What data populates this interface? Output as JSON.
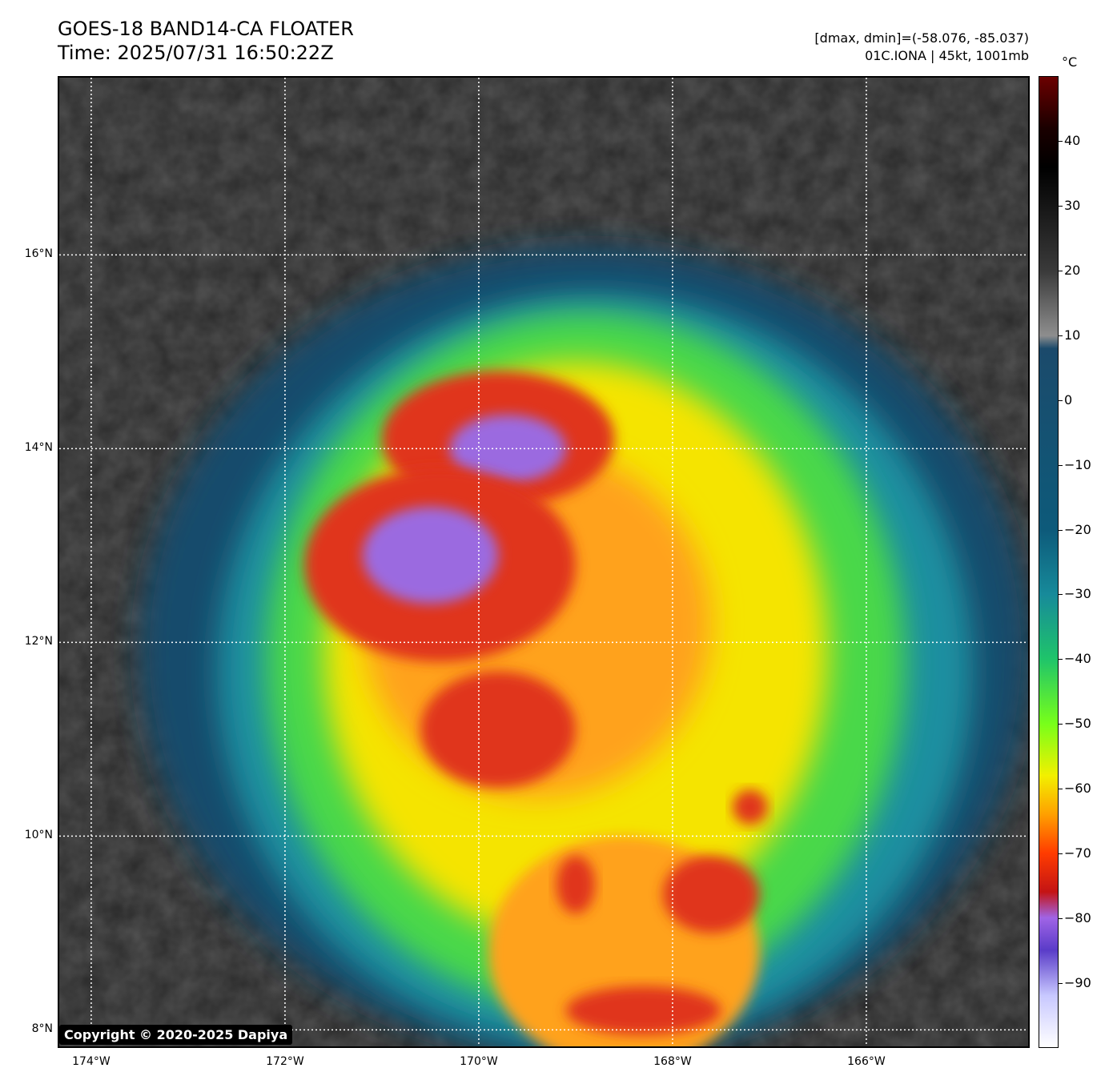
{
  "title": {
    "line1": "GOES-18 BAND14-CA FLOATER",
    "line2": "Time: 2025/07/31 16:50:22Z"
  },
  "info": {
    "line1": "[dmax, dmin]=(-58.076, -85.037)",
    "line2": "01C.IONA | 45kt, 1001mb"
  },
  "lat_labels": [
    {
      "text": "16°N",
      "lat": 16
    },
    {
      "text": "14°N",
      "lat": 14
    },
    {
      "text": "12°N",
      "lat": 12
    },
    {
      "text": "10°N",
      "lat": 10
    },
    {
      "text": "8°N",
      "lat": 8
    }
  ],
  "lon_labels": [
    {
      "text": "174°W",
      "lon": -174
    },
    {
      "text": "172°W",
      "lon": -172
    },
    {
      "text": "170°W",
      "lon": -170
    },
    {
      "text": "168°W",
      "lon": -168
    },
    {
      "text": "166°W",
      "lon": -166
    }
  ],
  "colorbar": {
    "unit": "°C",
    "min": -100,
    "max": 50,
    "ticks": [
      40,
      30,
      20,
      10,
      0,
      -10,
      -20,
      -30,
      -40,
      -50,
      -60,
      -70,
      -80,
      -90
    ],
    "tick_labels": [
      "40",
      "30",
      "20",
      "10",
      "0",
      "−10",
      "−20",
      "−30",
      "−40",
      "−50",
      "−60",
      "−70",
      "−80",
      "−90"
    ],
    "stops": [
      {
        "value": 50,
        "color": "#6b0000"
      },
      {
        "value": 42,
        "color": "#1a0000"
      },
      {
        "value": 36,
        "color": "#000000"
      },
      {
        "value": 20,
        "color": "#3a3a3a"
      },
      {
        "value": 10,
        "color": "#8e8e8e"
      },
      {
        "value": 8,
        "color": "#1b4a6b"
      },
      {
        "value": -20,
        "color": "#0d5a7a"
      },
      {
        "value": -30,
        "color": "#178a9a"
      },
      {
        "value": -40,
        "color": "#1fc46a"
      },
      {
        "value": -50,
        "color": "#78ff1a"
      },
      {
        "value": -58,
        "color": "#f2f000"
      },
      {
        "value": -64,
        "color": "#ffa000"
      },
      {
        "value": -70,
        "color": "#ff3c00"
      },
      {
        "value": -76,
        "color": "#c41414"
      },
      {
        "value": -80,
        "color": "#a064e6"
      },
      {
        "value": -85,
        "color": "#5a3cc8"
      },
      {
        "value": -92,
        "color": "#c8c8ff"
      },
      {
        "value": -100,
        "color": "#ffffff"
      }
    ]
  },
  "extent": {
    "lon_min": -174.33,
    "lon_max": -164.33,
    "lat_min": 7.83,
    "lat_max": 17.83
  },
  "copyright": "Copyright © 2020-2025 Dapiya",
  "colors": {
    "background_clear": "#2a2a2a",
    "low_cloud": "#555555",
    "cold_shelf": "#174c6c",
    "cyan": "#1f8fa0",
    "green": "#4ad84a",
    "yellow": "#f5e400",
    "orange": "#ffa21a",
    "red": "#e0341a",
    "purple": "#9b6ae0",
    "gridline": "#ffffff"
  },
  "cloud_features": [
    {
      "name": "outer-shield",
      "lon": -168.9,
      "lat": 11.9,
      "rx": 4.6,
      "ry": 4.2,
      "color": "cold_shelf"
    },
    {
      "name": "cyan-band",
      "lon": -168.8,
      "lat": 11.7,
      "rx": 3.9,
      "ry": 3.9,
      "color": "cyan"
    },
    {
      "name": "green-band",
      "lon": -168.9,
      "lat": 11.8,
      "rx": 3.3,
      "ry": 3.6,
      "color": "green"
    },
    {
      "name": "yellow-band",
      "lon": -169.0,
      "lat": 11.9,
      "rx": 2.6,
      "ry": 3.0,
      "color": "yellow"
    },
    {
      "name": "orange-core",
      "lon": -169.4,
      "lat": 12.2,
      "rx": 1.8,
      "ry": 1.8,
      "color": "orange"
    },
    {
      "name": "north-cell",
      "lon": -169.8,
      "lat": 14.1,
      "rx": 1.2,
      "ry": 0.7,
      "color": "red"
    },
    {
      "name": "north-cell-top",
      "lon": -169.7,
      "lat": 14.0,
      "rx": 0.6,
      "ry": 0.35,
      "color": "purple"
    },
    {
      "name": "main-cell",
      "lon": -170.4,
      "lat": 12.8,
      "rx": 1.4,
      "ry": 1.0,
      "color": "red"
    },
    {
      "name": "main-cell-top",
      "lon": -170.5,
      "lat": 12.9,
      "rx": 0.7,
      "ry": 0.5,
      "color": "purple"
    },
    {
      "name": "south-cell",
      "lon": -169.8,
      "lat": 11.1,
      "rx": 0.8,
      "ry": 0.6,
      "color": "red"
    },
    {
      "name": "southern-band",
      "lon": -168.5,
      "lat": 8.8,
      "rx": 1.4,
      "ry": 1.2,
      "color": "orange"
    },
    {
      "name": "southern-cell-1",
      "lon": -168.3,
      "lat": 8.2,
      "rx": 0.8,
      "ry": 0.25,
      "color": "red"
    },
    {
      "name": "southern-cell-2",
      "lon": -169.0,
      "lat": 9.5,
      "rx": 0.2,
      "ry": 0.3,
      "color": "red"
    },
    {
      "name": "southern-cell-3",
      "lon": -167.6,
      "lat": 9.4,
      "rx": 0.5,
      "ry": 0.4,
      "color": "red"
    },
    {
      "name": "isolated-cell",
      "lon": -167.2,
      "lat": 10.3,
      "rx": 0.18,
      "ry": 0.18,
      "color": "red"
    }
  ]
}
